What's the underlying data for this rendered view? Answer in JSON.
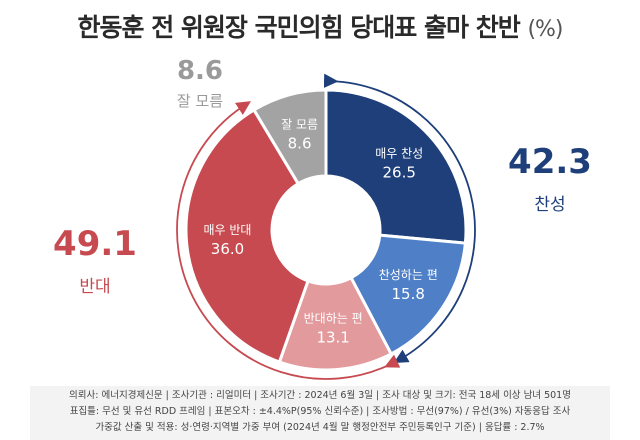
{
  "title": {
    "main": "한동훈 전 위원장 국민의힘 당대표 출마 찬반",
    "unit": "(%)"
  },
  "summary": {
    "support": {
      "value": "42.3",
      "label": "찬성"
    },
    "oppose": {
      "value": "49.1",
      "label": "반대"
    },
    "unknown": {
      "value": "8.6",
      "label": "잘 모름"
    }
  },
  "chart_data": {
    "type": "pie",
    "title": "한동훈 전 위원장 국민의힘 당대표 출마 찬반",
    "unit": "%",
    "slices": [
      {
        "label": "매우 찬성",
        "value": 26.5,
        "color": "#1e3f7a"
      },
      {
        "label": "찬성하는 편",
        "value": 15.8,
        "color": "#4e7fc7"
      },
      {
        "label": "반대하는 편",
        "value": 13.1,
        "color": "#e29a9d"
      },
      {
        "label": "매우 반대",
        "value": 36.0,
        "color": "#c64a50"
      },
      {
        "label": "잘 모름",
        "value": 8.6,
        "color": "#a3a3a3"
      }
    ],
    "groups": [
      {
        "label": "찬성",
        "value": 42.3,
        "color": "#1e3f7a"
      },
      {
        "label": "반대",
        "value": 49.1,
        "color": "#c64a50"
      },
      {
        "label": "잘 모름",
        "value": 8.6,
        "color": "#a3a3a3"
      }
    ]
  },
  "footer": {
    "line1": "의뢰사: 에너지경제신문 | 조사기관 : 리얼미터  |  조사기간 : 2024년 6월 3일 | 조사 대상 및 크기: 전국 18세 이상 남녀 501명",
    "line2": "표집틀: 무선 및 유선 RDD 프레임 | 표본오차 : ±4.4%P(95% 신뢰수준) | 조사방법 : 무선(97%) / 유선(3%) 자동응답 조사",
    "line3": "가중값 산출 및 적용: 성·연령·지역별 가중 부여 (2024년 4월 말 행정안전부 주민등록인구 기준) | 응답률 : 2.7%"
  }
}
